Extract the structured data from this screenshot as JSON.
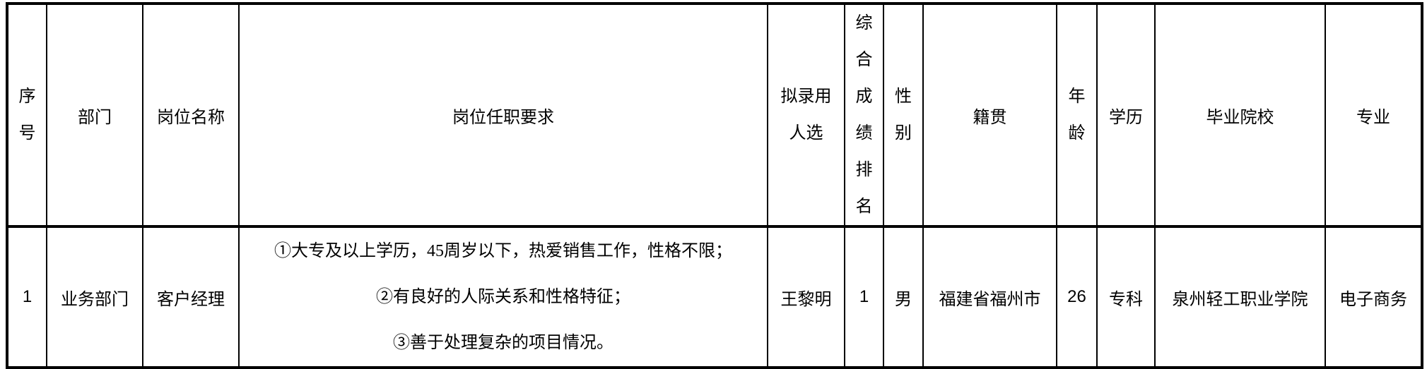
{
  "headers": {
    "seq": [
      "序",
      "号"
    ],
    "dept": "部门",
    "position": "岗位名称",
    "requirements": "岗位任职要求",
    "candidate": [
      "拟录用",
      "人选"
    ],
    "rank": [
      "综",
      "合",
      "成",
      "绩",
      "排",
      "名"
    ],
    "gender": [
      "性",
      "别"
    ],
    "origin": "籍贯",
    "age": [
      "年",
      "龄"
    ],
    "education": "学历",
    "school": "毕业院校",
    "major": "专业"
  },
  "rows": [
    {
      "seq": "1",
      "dept": "业务部门",
      "position": "客户经理",
      "requirements": [
        "①大专及以上学历，45周岁以下，热爱销售工作，性格不限；",
        "②有良好的人际关系和性格特征；",
        "③善于处理复杂的项目情况。"
      ],
      "candidate": "王黎明",
      "rank": "1",
      "gender": "男",
      "origin": "福建省福州市",
      "age": "26",
      "education": "专科",
      "school": "泉州轻工职业学院",
      "major": "电子商务"
    }
  ]
}
